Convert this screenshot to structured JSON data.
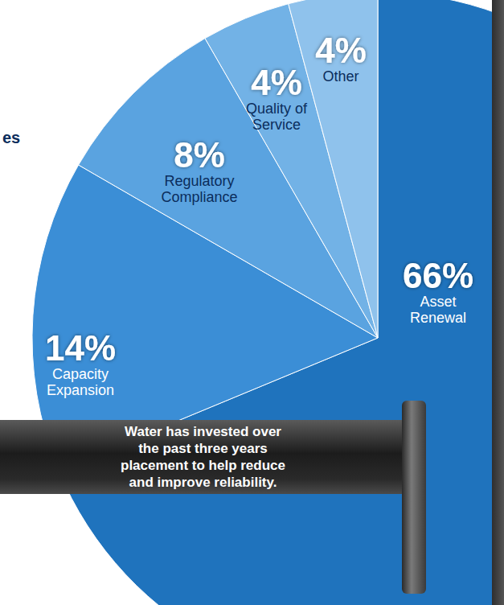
{
  "chart_data": {
    "type": "pie",
    "categories": [
      "Asset Renewal",
      "Capacity Expansion",
      "Regulatory Compliance",
      "Quality of Service",
      "Other"
    ],
    "values": [
      66,
      14,
      8,
      4,
      4
    ],
    "value_labels": [
      "66%",
      "14%",
      "8%",
      "4%",
      "4%"
    ],
    "colors": [
      "#1f73bd",
      "#3b8ed6",
      "#5aa3e0",
      "#72b2e6",
      "#8fc2ec"
    ],
    "data_labels": true,
    "annotations": [
      "es",
      "Water has invested over",
      "the past three years",
      "placement to help reduce",
      "and improve reliability."
    ]
  }
}
